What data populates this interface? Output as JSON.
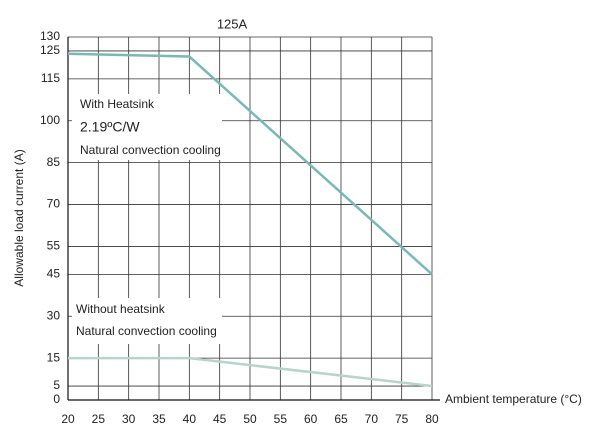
{
  "chart_data": {
    "type": "line",
    "title": "125A",
    "x_label": "Ambient temperature (°C)",
    "y_label": "Allowable load current (A)",
    "x": [
      20,
      40,
      80
    ],
    "series": [
      {
        "color": "#7ab8b4",
        "values": [
          124,
          123,
          45
        ]
      },
      {
        "color": "#b8d3cc",
        "values": [
          15,
          15,
          5
        ]
      }
    ],
    "annotations": [
      "With Heatsink",
      "2.19ºC/W",
      "Natural convection cooling",
      "Without heatsink",
      "Natural convection cooling"
    ],
    "xlim": [
      20,
      80
    ],
    "xticks": [
      20,
      25,
      30,
      35,
      40,
      45,
      50,
      55,
      60,
      65,
      70,
      75,
      80
    ],
    "ylim": [
      0,
      130
    ],
    "yticks": [
      0,
      5,
      15,
      30,
      45,
      55,
      70,
      85,
      100,
      115,
      125,
      130
    ],
    "grid": true
  }
}
